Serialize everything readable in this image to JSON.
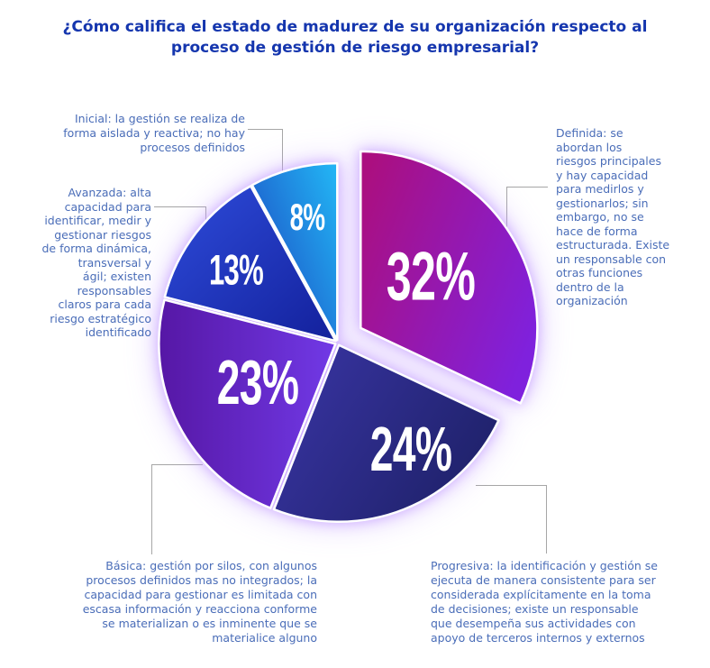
{
  "title": "¿Cómo califica el estado de madurez de su organización respecto al\nproceso de gestión de riesgo empresarial?",
  "colors": {
    "title_text": "#1536ae",
    "callout_text": "#4a6db8",
    "connector_line": "#a6a6a6",
    "value_text": "#ffffff",
    "background": "#ffffff",
    "glow": "#c9a8f7"
  },
  "chart_data": {
    "type": "pie",
    "title": "¿Cómo califica el estado de madurez de su organización respecto al proceso de gestión de riesgo empresarial?",
    "unit": "percent",
    "start_angle_deg": 0,
    "direction": "clockwise",
    "legend_position": "callout-labels-around-pie",
    "slices": [
      {
        "key": "definida",
        "name": "Definida",
        "value": 32,
        "display": "32%",
        "exploded": true,
        "color_start": "#ab0f80",
        "color_end": "#7f21dd",
        "description": "Definida: se abordan los riesgos principales y hay capacidad para medirlos y gestionarlos; sin embargo, no se hace de forma estructurada. Existe un responsable con otras funciones dentro de la organización"
      },
      {
        "key": "progresiva",
        "name": "Progresiva",
        "value": 24,
        "display": "24%",
        "exploded": false,
        "color_start": "#37339f",
        "color_end": "#1d2066",
        "description": "Progresiva: la identificación y gestión se ejecuta de manera consistente para ser considerada explícitamente en la toma de decisiones; existe un responsable que desempeña sus actividades con apoyo de terceros internos y externos"
      },
      {
        "key": "basica",
        "name": "Básica",
        "value": 23,
        "display": "23%",
        "exploded": false,
        "color_start": "#5617a5",
        "color_end": "#7139e6",
        "description": "Básica: gestión por silos, con algunos procesos definidos mas no integrados; la capacidad para gestionar es limitada con escasa información y reacciona conforme se materializan o es inminente que se materialice alguno"
      },
      {
        "key": "avanzada",
        "name": "Avanzada",
        "value": 13,
        "display": "13%",
        "exploded": false,
        "color_start": "#2e4cdb",
        "color_end": "#13209b",
        "description": "Avanzada: alta capacidad para identificar, medir y gestionar riesgos de forma dinámica, transversal y ágil; existen responsables claros para cada riesgo estratégico identificado"
      },
      {
        "key": "inicial",
        "name": "Inicial",
        "value": 8,
        "display": "8%",
        "exploded": false,
        "color_start": "#1c45c0",
        "color_end": "#22b2f3",
        "description": "Inicial: la gestión se realiza de forma aislada y reactiva; no hay procesos definidos"
      }
    ]
  },
  "callouts": {
    "inicial": {
      "text": "Inicial: la gestión se realiza de\nforma aislada y reactiva; no hay\nprocesos definidos"
    },
    "avanzada": {
      "text": "Avanzada: alta\ncapacidad para\nidentificar, medir y\ngestionar riesgos\nde forma dinámica,\ntransversal y\nágil; existen\nresponsables\nclaros para cada\nriesgo estratégico\nidentificado"
    },
    "definida": {
      "text": "Definida: se\nabordan los\nriesgos principales\ny hay capacidad\npara medirlos y\ngestionarlos; sin\nembargo, no se\nhace de forma\nestructurada. Existe\nun responsable con\notras funciones\ndentro de la\norganización"
    },
    "basica": {
      "text": "Básica: gestión por silos, con algunos\nprocesos definidos mas no integrados; la\ncapacidad para gestionar es limitada con\nescasa información y reacciona conforme\nse materializan o es inminente que se\nmaterialice alguno"
    },
    "progresiva": {
      "text": "Progresiva: la identificación y gestión se\nejecuta de manera consistente para ser\nconsiderada explícitamente en la toma\nde decisiones; existe un responsable\nque desempeña sus actividades con\napoyo de terceros internos y externos"
    }
  }
}
